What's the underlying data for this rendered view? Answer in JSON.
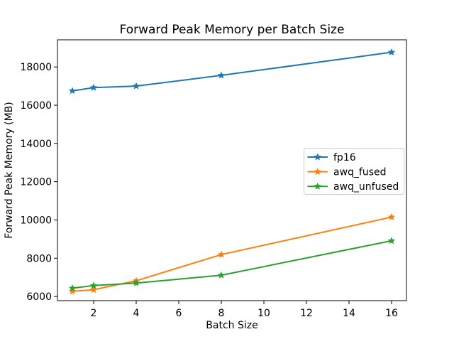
{
  "chart_data": {
    "type": "line",
    "title": "Forward Peak Memory per Batch Size",
    "xlabel": "Batch Size",
    "ylabel": "Forward Peak Memory (MB)",
    "x": [
      1,
      2,
      4,
      8,
      16
    ],
    "series": [
      {
        "name": "fp16",
        "color": "#1f77b4",
        "marker": "star",
        "values": [
          16750,
          16920,
          17000,
          17560,
          18770
        ]
      },
      {
        "name": "awq_fused",
        "color": "#ff7f0e",
        "marker": "star",
        "values": [
          6270,
          6350,
          6820,
          8190,
          10150
        ]
      },
      {
        "name": "awq_unfused",
        "color": "#2ca02c",
        "marker": "star",
        "values": [
          6430,
          6570,
          6700,
          7110,
          8910
        ]
      }
    ],
    "xticks": [
      2,
      4,
      6,
      8,
      10,
      12,
      14,
      16
    ],
    "yticks": [
      6000,
      8000,
      10000,
      12000,
      14000,
      16000,
      18000
    ],
    "xlim": [
      0.3,
      16.7
    ],
    "ylim": [
      5780,
      19420
    ],
    "grid": false,
    "legend": {
      "position": "center-right",
      "entries": [
        "fp16",
        "awq_fused",
        "awq_unfused"
      ]
    },
    "colors": {
      "spine": "#000000",
      "legend_border": "#cccccc",
      "background": "#ffffff"
    }
  }
}
